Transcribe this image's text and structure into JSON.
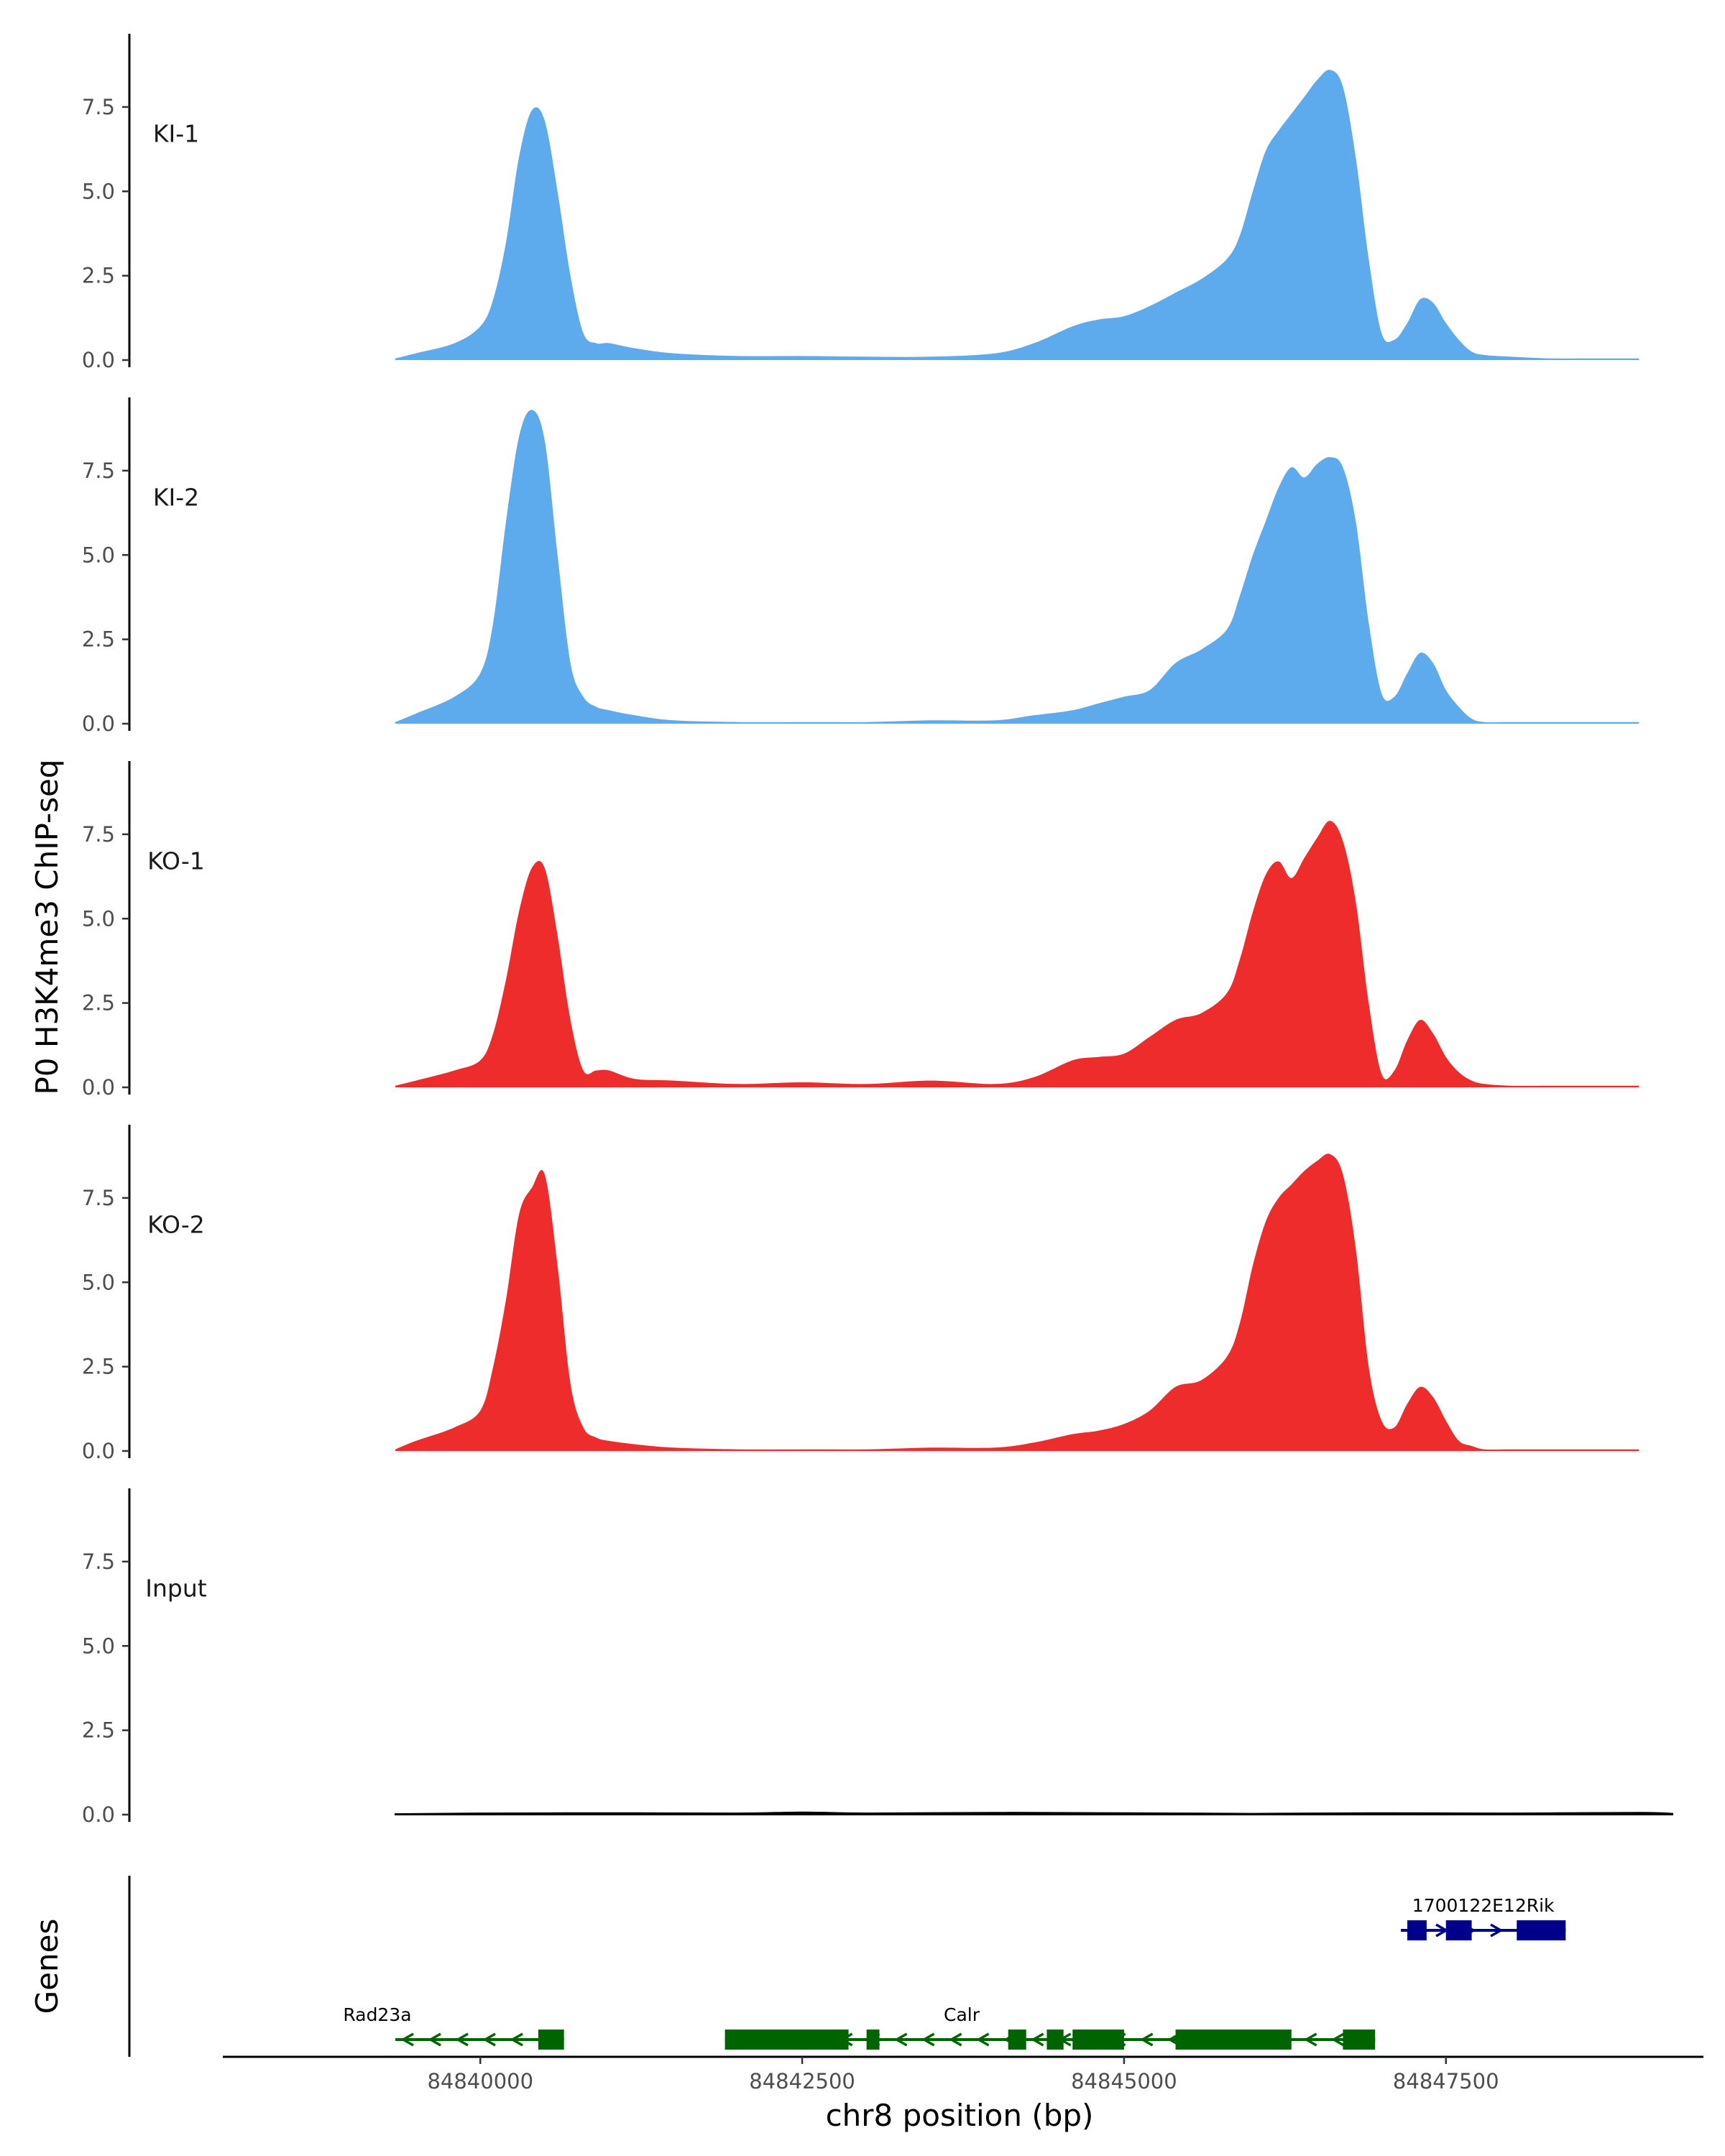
{
  "chart_data": {
    "type": "area",
    "title": "",
    "ylabel": "P0 H3K4me3 ChIP-seq",
    "xlabel": "chr8 position (bp)",
    "xlim": [
      84838000,
      84849500
    ],
    "ylim": [
      0,
      9.5
    ],
    "y_ticks": [
      0,
      2.5,
      5,
      7.5
    ],
    "y_tick_labels": [
      "0.0",
      "2.5",
      "5.0",
      "7.5"
    ],
    "x_ticks": [
      84840000,
      84842500,
      84845000,
      84847500
    ],
    "x_tick_labels": [
      "84840000",
      "84842500",
      "84845000",
      "84847500"
    ],
    "x_range": [
      84839340,
      84849260
    ],
    "colors": {
      "KI": "#5DABEC",
      "KO": "#EE2C2C",
      "Input": "#000000",
      "gene_minus": "#006400",
      "gene_plus": "#00008B"
    },
    "series": [
      {
        "name": "KI-1",
        "color": "#5DABEC",
        "x": [
          84839340,
          84839500,
          84839800,
          84840000,
          84840100,
          84840200,
          84840300,
          84840400,
          84840500,
          84840600,
          84840700,
          84840800,
          84840900,
          84841000,
          84841200,
          84841500,
          84842000,
          84842500,
          84843000,
          84843500,
          84844000,
          84844300,
          84844600,
          84844800,
          84845000,
          84845200,
          84845400,
          84845600,
          84845800,
          84845900,
          84846000,
          84846100,
          84846200,
          84846300,
          84846400,
          84846500,
          84846600,
          84846700,
          84846800,
          84846900,
          84847000,
          84847100,
          84847200,
          84847300,
          84847400,
          84847500,
          84847600,
          84847700,
          84847800,
          84848000,
          84848300,
          84848600,
          84849000
        ],
        "values": [
          0.05,
          0.2,
          0.5,
          1.0,
          1.8,
          3.5,
          6.0,
          7.4,
          7.1,
          5.0,
          2.5,
          0.8,
          0.5,
          0.5,
          0.35,
          0.2,
          0.12,
          0.12,
          0.1,
          0.1,
          0.2,
          0.5,
          1.0,
          1.2,
          1.3,
          1.6,
          2.0,
          2.4,
          3.0,
          3.7,
          5.0,
          6.2,
          6.8,
          7.3,
          7.8,
          8.3,
          8.6,
          8.1,
          6.0,
          3.0,
          0.8,
          0.6,
          1.1,
          1.8,
          1.7,
          1.1,
          0.6,
          0.25,
          0.15,
          0.1,
          0.05,
          0.05,
          0.05
        ]
      },
      {
        "name": "KI-2",
        "color": "#5DABEC",
        "x": [
          84839340,
          84839500,
          84839800,
          84840000,
          84840100,
          84840200,
          84840300,
          84840400,
          84840500,
          84840600,
          84840700,
          84840800,
          84840900,
          84841000,
          84841200,
          84841500,
          84842000,
          84842500,
          84843000,
          84843500,
          84844000,
          84844300,
          84844600,
          84844800,
          84845000,
          84845200,
          84845400,
          84845600,
          84845800,
          84845900,
          84846000,
          84846100,
          84846200,
          84846300,
          84846400,
          84846500,
          84846600,
          84846700,
          84846800,
          84846900,
          84847000,
          84847100,
          84847200,
          84847300,
          84847400,
          84847500,
          84847600,
          84847700,
          84847800,
          84848000,
          84848300,
          84848600,
          84849000
        ],
        "values": [
          0.05,
          0.3,
          0.8,
          1.5,
          3.0,
          6.0,
          8.5,
          9.3,
          8.4,
          5.0,
          1.8,
          0.8,
          0.5,
          0.4,
          0.25,
          0.1,
          0.05,
          0.05,
          0.05,
          0.1,
          0.1,
          0.25,
          0.4,
          0.6,
          0.8,
          1.0,
          1.8,
          2.2,
          2.8,
          3.8,
          5.0,
          6.0,
          7.0,
          7.6,
          7.3,
          7.7,
          7.9,
          7.6,
          6.0,
          3.0,
          0.9,
          0.8,
          1.5,
          2.1,
          1.8,
          1.0,
          0.5,
          0.15,
          0.05,
          0.05,
          0.05,
          0.05,
          0.05
        ]
      },
      {
        "name": "KO-1",
        "color": "#EE2C2C",
        "x": [
          84839340,
          84839500,
          84839800,
          84840000,
          84840100,
          84840200,
          84840300,
          84840400,
          84840500,
          84840600,
          84840700,
          84840800,
          84840900,
          84841000,
          84841200,
          84841500,
          84842000,
          84842500,
          84843000,
          84843500,
          84844000,
          84844300,
          84844600,
          84844800,
          84845000,
          84845200,
          84845400,
          84845600,
          84845800,
          84845900,
          84846000,
          84846100,
          84846200,
          84846300,
          84846400,
          84846500,
          84846600,
          84846700,
          84846800,
          84846900,
          84847000,
          84847100,
          84847200,
          84847300,
          84847400,
          84847500,
          84847600,
          84847700,
          84847800,
          84848000,
          84848300,
          84848600,
          84849000
        ],
        "values": [
          0.05,
          0.2,
          0.5,
          0.8,
          1.6,
          3.2,
          5.2,
          6.5,
          6.5,
          4.5,
          2.0,
          0.5,
          0.5,
          0.5,
          0.25,
          0.2,
          0.1,
          0.15,
          0.1,
          0.2,
          0.1,
          0.3,
          0.8,
          0.9,
          1.0,
          1.5,
          2.0,
          2.2,
          2.8,
          3.8,
          5.2,
          6.3,
          6.7,
          6.2,
          6.8,
          7.4,
          7.9,
          7.3,
          5.5,
          2.5,
          0.4,
          0.5,
          1.4,
          2.0,
          1.6,
          0.9,
          0.45,
          0.2,
          0.1,
          0.05,
          0.05,
          0.05,
          0.05
        ]
      },
      {
        "name": "KO-2",
        "color": "#EE2C2C",
        "x": [
          84839340,
          84839500,
          84839800,
          84840000,
          84840100,
          84840200,
          84840300,
          84840400,
          84840500,
          84840600,
          84840700,
          84840800,
          84840900,
          84841000,
          84841200,
          84841500,
          84842000,
          84842500,
          84843000,
          84843500,
          84844000,
          84844300,
          84844600,
          84844800,
          84845000,
          84845200,
          84845400,
          84845600,
          84845800,
          84845900,
          84846000,
          84846100,
          84846200,
          84846300,
          84846400,
          84846500,
          84846600,
          84846700,
          84846800,
          84846900,
          84847000,
          84847100,
          84847200,
          84847300,
          84847400,
          84847500,
          84847600,
          84847700,
          84847800,
          84848000,
          84848300,
          84848600,
          84849000
        ],
        "values": [
          0.05,
          0.3,
          0.7,
          1.2,
          2.5,
          4.5,
          7.0,
          7.8,
          8.2,
          5.5,
          2.0,
          0.7,
          0.4,
          0.3,
          0.2,
          0.1,
          0.05,
          0.05,
          0.05,
          0.1,
          0.1,
          0.25,
          0.5,
          0.6,
          0.8,
          1.2,
          1.9,
          2.1,
          2.8,
          3.8,
          5.5,
          6.8,
          7.5,
          7.9,
          8.3,
          8.6,
          8.8,
          8.2,
          6.0,
          2.5,
          0.9,
          0.7,
          1.4,
          1.9,
          1.6,
          0.9,
          0.3,
          0.15,
          0.05,
          0.05,
          0.05,
          0.05,
          0.05
        ]
      },
      {
        "name": "Input",
        "color": "#000000",
        "x": [
          84839340,
          84840000,
          84841000,
          84842000,
          84842500,
          84843000,
          84844000,
          84845000,
          84846000,
          84847000,
          84848000,
          84849000,
          84849260
        ],
        "values": [
          0.02,
          0.04,
          0.05,
          0.04,
          0.07,
          0.04,
          0.06,
          0.05,
          0.03,
          0.05,
          0.04,
          0.06,
          0.03
        ]
      }
    ],
    "genes_track": {
      "label": "Genes",
      "genes": [
        {
          "name": "Rad23a",
          "strand": "-",
          "color": "#006400",
          "start": 84839340,
          "end": 84840650,
          "exons": [
            [
              84840450,
              84840650
            ]
          ]
        },
        {
          "name": "Calr",
          "strand": "-",
          "color": "#006400",
          "start": 84841900,
          "end": 84846950,
          "exons": [
            [
              84841900,
              84842860
            ],
            [
              84843000,
              84843100
            ],
            [
              84844100,
              84844240
            ],
            [
              84844400,
              84844530
            ],
            [
              84844600,
              84845000
            ],
            [
              84845400,
              84846300
            ],
            [
              84846700,
              84846950
            ]
          ]
        },
        {
          "name": "1700122E12Rik",
          "strand": "+",
          "color": "#00008B",
          "start": 84847150,
          "end": 84848430,
          "exons": [
            [
              84847200,
              84847350
            ],
            [
              84847500,
              84847700
            ],
            [
              84848050,
              84848430
            ]
          ]
        }
      ]
    }
  }
}
